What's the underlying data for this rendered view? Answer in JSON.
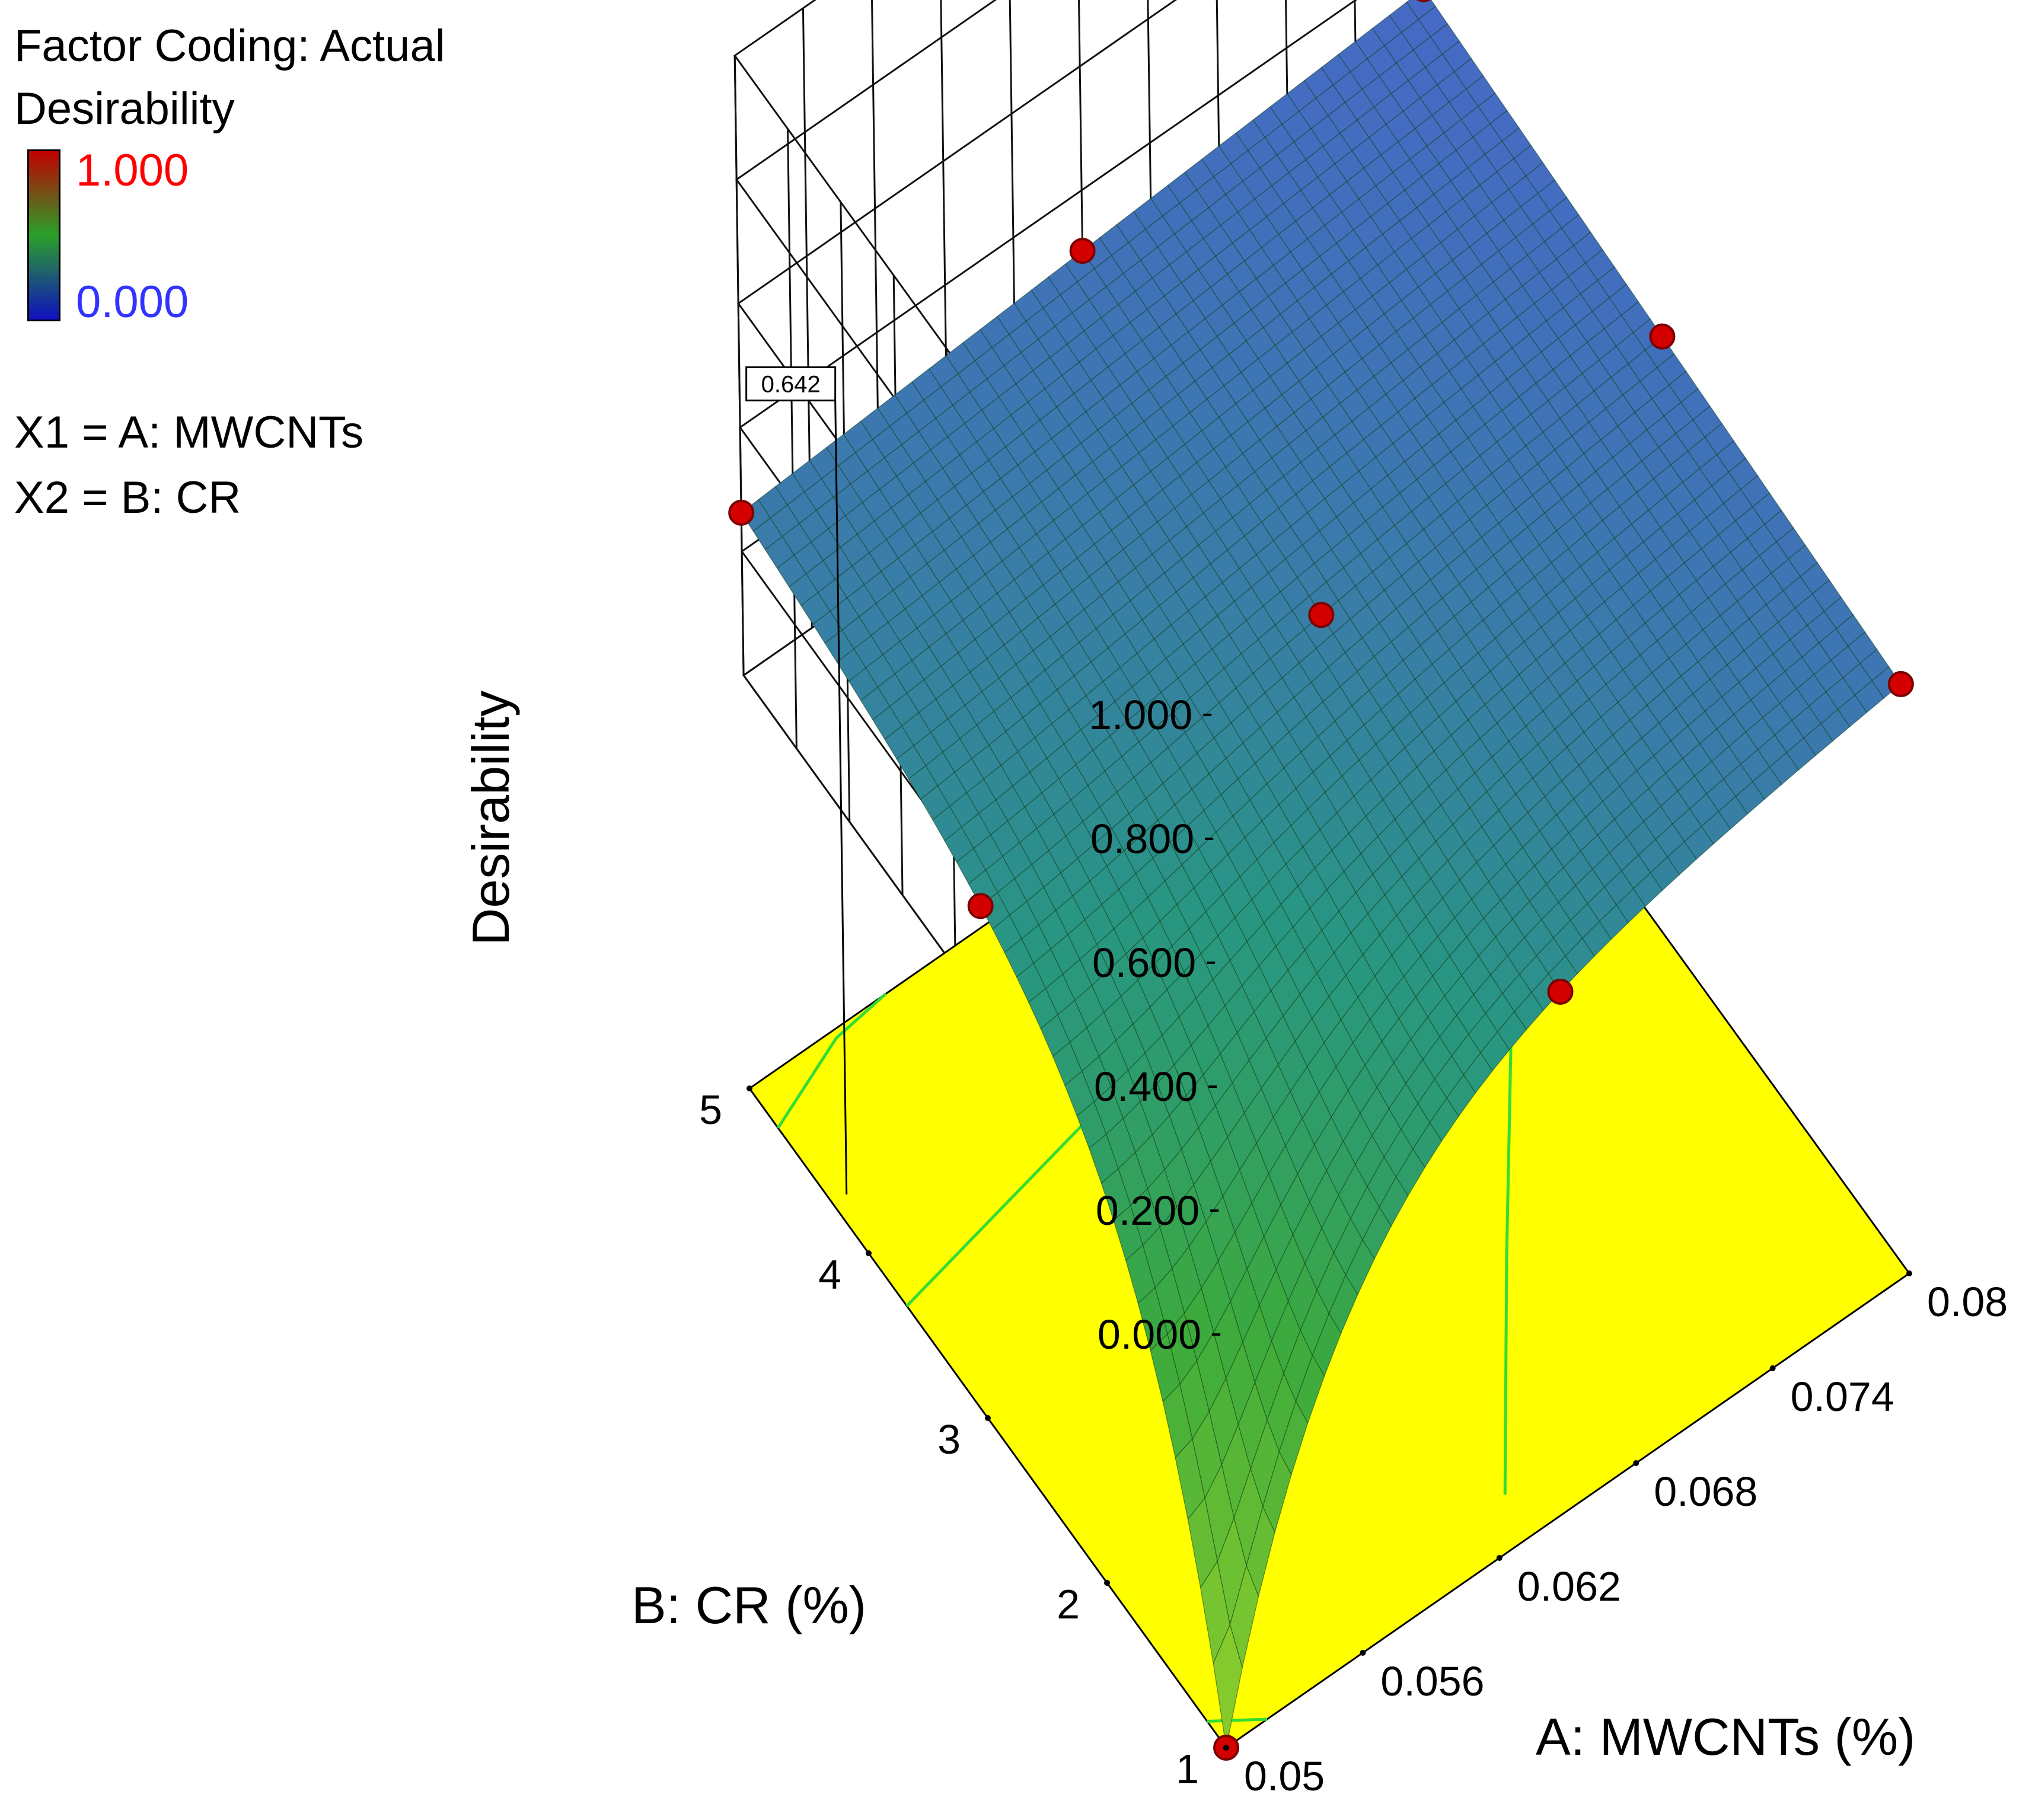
{
  "legend": {
    "factor_coding": "Factor Coding: Actual",
    "response_name": "Desirability",
    "max_label": "1.000",
    "min_label": "0.000",
    "x1_def": "X1 = A: MWCNTs",
    "x2_def": "X2 = B: CR",
    "ramp_colors": [
      "#c00000",
      "#2aa02a",
      "#1010c0"
    ]
  },
  "chart_data": {
    "type": "surface",
    "title": "",
    "zlabel": "Desirability",
    "xlabel": "A: MWCNTs (%)",
    "ylabel": "B: CR (%)",
    "x_ticks": [
      "0.05",
      "0.056",
      "0.062",
      "0.068",
      "0.074",
      "0.08"
    ],
    "y_ticks": [
      "1",
      "2",
      "3",
      "4",
      "5"
    ],
    "z_ticks": [
      "0.000",
      "0.200",
      "0.400",
      "0.600",
      "0.800",
      "1.000"
    ],
    "x_range": [
      0.05,
      0.08
    ],
    "y_range": [
      1,
      5
    ],
    "z_range": [
      0,
      1
    ],
    "flag_label": "0.642",
    "flag_point": {
      "x": 0.05,
      "y": 4.3,
      "z": 0.642
    },
    "floor_color": "#ffff00",
    "contour_color": "#33dd33",
    "design_points": [
      {
        "x": 0.05,
        "y": 1,
        "z": 0.0
      },
      {
        "x": 0.065,
        "y": 1,
        "z": 0.55
      },
      {
        "x": 0.08,
        "y": 1,
        "z": 0.78
      },
      {
        "x": 0.05,
        "y": 3,
        "z": 0.55
      },
      {
        "x": 0.065,
        "y": 3,
        "z": 0.68
      },
      {
        "x": 0.08,
        "y": 3,
        "z": 0.8
      },
      {
        "x": 0.05,
        "y": 5,
        "z": 0.78
      },
      {
        "x": 0.065,
        "y": 5,
        "z": 0.8
      },
      {
        "x": 0.08,
        "y": 5,
        "z": 0.88
      }
    ]
  }
}
